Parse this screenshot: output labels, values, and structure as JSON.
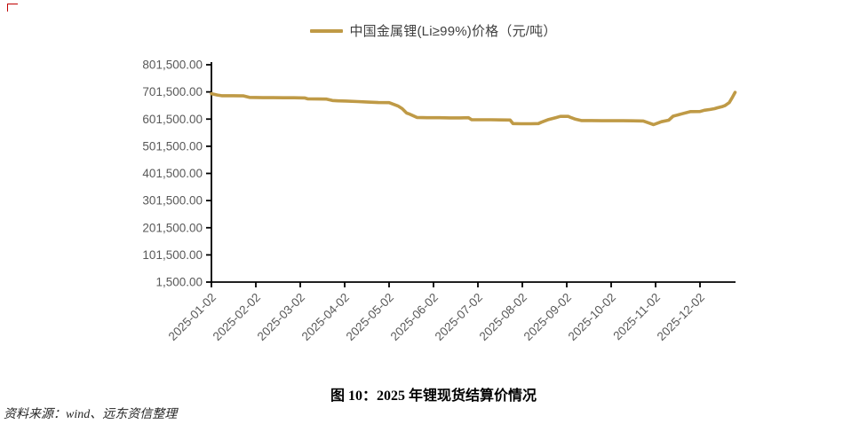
{
  "page": {
    "background": "#ffffff",
    "corner_mark_color": "#C00000"
  },
  "legend": {
    "label": "中国金属锂(Li≥99%)价格（元/吨）",
    "swatch_color": "#BF9A46"
  },
  "caption": "图 10：2025 年锂现货结算价情况",
  "source": "资料来源：wind、远东资信整理",
  "chart_data": {
    "type": "line",
    "title": "",
    "xlabel": "",
    "ylabel": "",
    "ylim": [
      1500,
      801500
    ],
    "grid": false,
    "legend_position": "top",
    "axis_color": "#000000",
    "tick_label_color": "#595959",
    "y_ticks": [
      1500,
      101500,
      201500,
      301500,
      401500,
      501500,
      601500,
      701500,
      801500
    ],
    "y_tick_labels": [
      "1,500.00",
      "101,500.00",
      "201,500.00",
      "301,500.00",
      "401,500.00",
      "501,500.00",
      "601,500.00",
      "701,500.00",
      "801,500.00"
    ],
    "x_tick_labels": [
      "2025-01-02",
      "2025-02-02",
      "2025-03-02",
      "2025-04-02",
      "2025-05-02",
      "2025-06-02",
      "2025-07-02",
      "2025-08-02",
      "2025-09-02",
      "2025-10-02",
      "2025-11-02",
      "2025-12-02"
    ],
    "series": [
      {
        "name": "中国金属锂(Li≥99%)价格（元/吨）",
        "color": "#BF9A46",
        "points": [
          [
            "2025-01-02",
            695000
          ],
          [
            "2025-01-06",
            690000
          ],
          [
            "2025-01-09",
            687500
          ],
          [
            "2025-01-17",
            687500
          ],
          [
            "2025-01-24",
            687000
          ],
          [
            "2025-01-28",
            681500
          ],
          [
            "2025-02-07",
            680500
          ],
          [
            "2025-02-14",
            680500
          ],
          [
            "2025-02-21",
            680000
          ],
          [
            "2025-02-28",
            680000
          ],
          [
            "2025-03-05",
            679500
          ],
          [
            "2025-03-07",
            676000
          ],
          [
            "2025-03-14",
            675500
          ],
          [
            "2025-03-20",
            675000
          ],
          [
            "2025-03-24",
            670000
          ],
          [
            "2025-03-28",
            668500
          ],
          [
            "2025-04-03",
            668000
          ],
          [
            "2025-04-11",
            666000
          ],
          [
            "2025-04-18",
            664000
          ],
          [
            "2025-04-25",
            662500
          ],
          [
            "2025-05-02",
            662000
          ],
          [
            "2025-05-08",
            650000
          ],
          [
            "2025-05-11",
            640000
          ],
          [
            "2025-05-14",
            624000
          ],
          [
            "2025-05-16",
            620000
          ],
          [
            "2025-05-21",
            607500
          ],
          [
            "2025-05-28",
            606500
          ],
          [
            "2025-06-06",
            606500
          ],
          [
            "2025-06-13",
            606000
          ],
          [
            "2025-06-20",
            606000
          ],
          [
            "2025-06-26",
            606500
          ],
          [
            "2025-06-28",
            599500
          ],
          [
            "2025-07-04",
            599000
          ],
          [
            "2025-07-11",
            599000
          ],
          [
            "2025-07-18",
            598500
          ],
          [
            "2025-07-24",
            598000
          ],
          [
            "2025-07-26",
            585000
          ],
          [
            "2025-08-01",
            584500
          ],
          [
            "2025-08-08",
            584500
          ],
          [
            "2025-08-13",
            585000
          ],
          [
            "2025-08-15",
            590000
          ],
          [
            "2025-08-20",
            600000
          ],
          [
            "2025-08-25",
            607000
          ],
          [
            "2025-08-28",
            611500
          ],
          [
            "2025-09-03",
            611500
          ],
          [
            "2025-09-05",
            607000
          ],
          [
            "2025-09-08",
            601000
          ],
          [
            "2025-09-12",
            596000
          ],
          [
            "2025-09-19",
            596000
          ],
          [
            "2025-09-26",
            595500
          ],
          [
            "2025-10-10",
            595500
          ],
          [
            "2025-10-17",
            595000
          ],
          [
            "2025-10-24",
            594500
          ],
          [
            "2025-10-29",
            585000
          ],
          [
            "2025-10-31",
            581000
          ],
          [
            "2025-11-04",
            588000
          ],
          [
            "2025-11-06",
            592000
          ],
          [
            "2025-11-11",
            597500
          ],
          [
            "2025-11-14",
            612000
          ],
          [
            "2025-11-20",
            621000
          ],
          [
            "2025-11-26",
            629000
          ],
          [
            "2025-12-02",
            629500
          ],
          [
            "2025-12-05",
            634000
          ],
          [
            "2025-12-09",
            637000
          ],
          [
            "2025-12-12",
            640000
          ],
          [
            "2025-12-14",
            643000
          ],
          [
            "2025-12-17",
            647000
          ],
          [
            "2025-12-19",
            651000
          ],
          [
            "2025-12-22",
            662000
          ],
          [
            "2025-12-24",
            680000
          ],
          [
            "2025-12-26",
            700000
          ]
        ]
      }
    ]
  }
}
